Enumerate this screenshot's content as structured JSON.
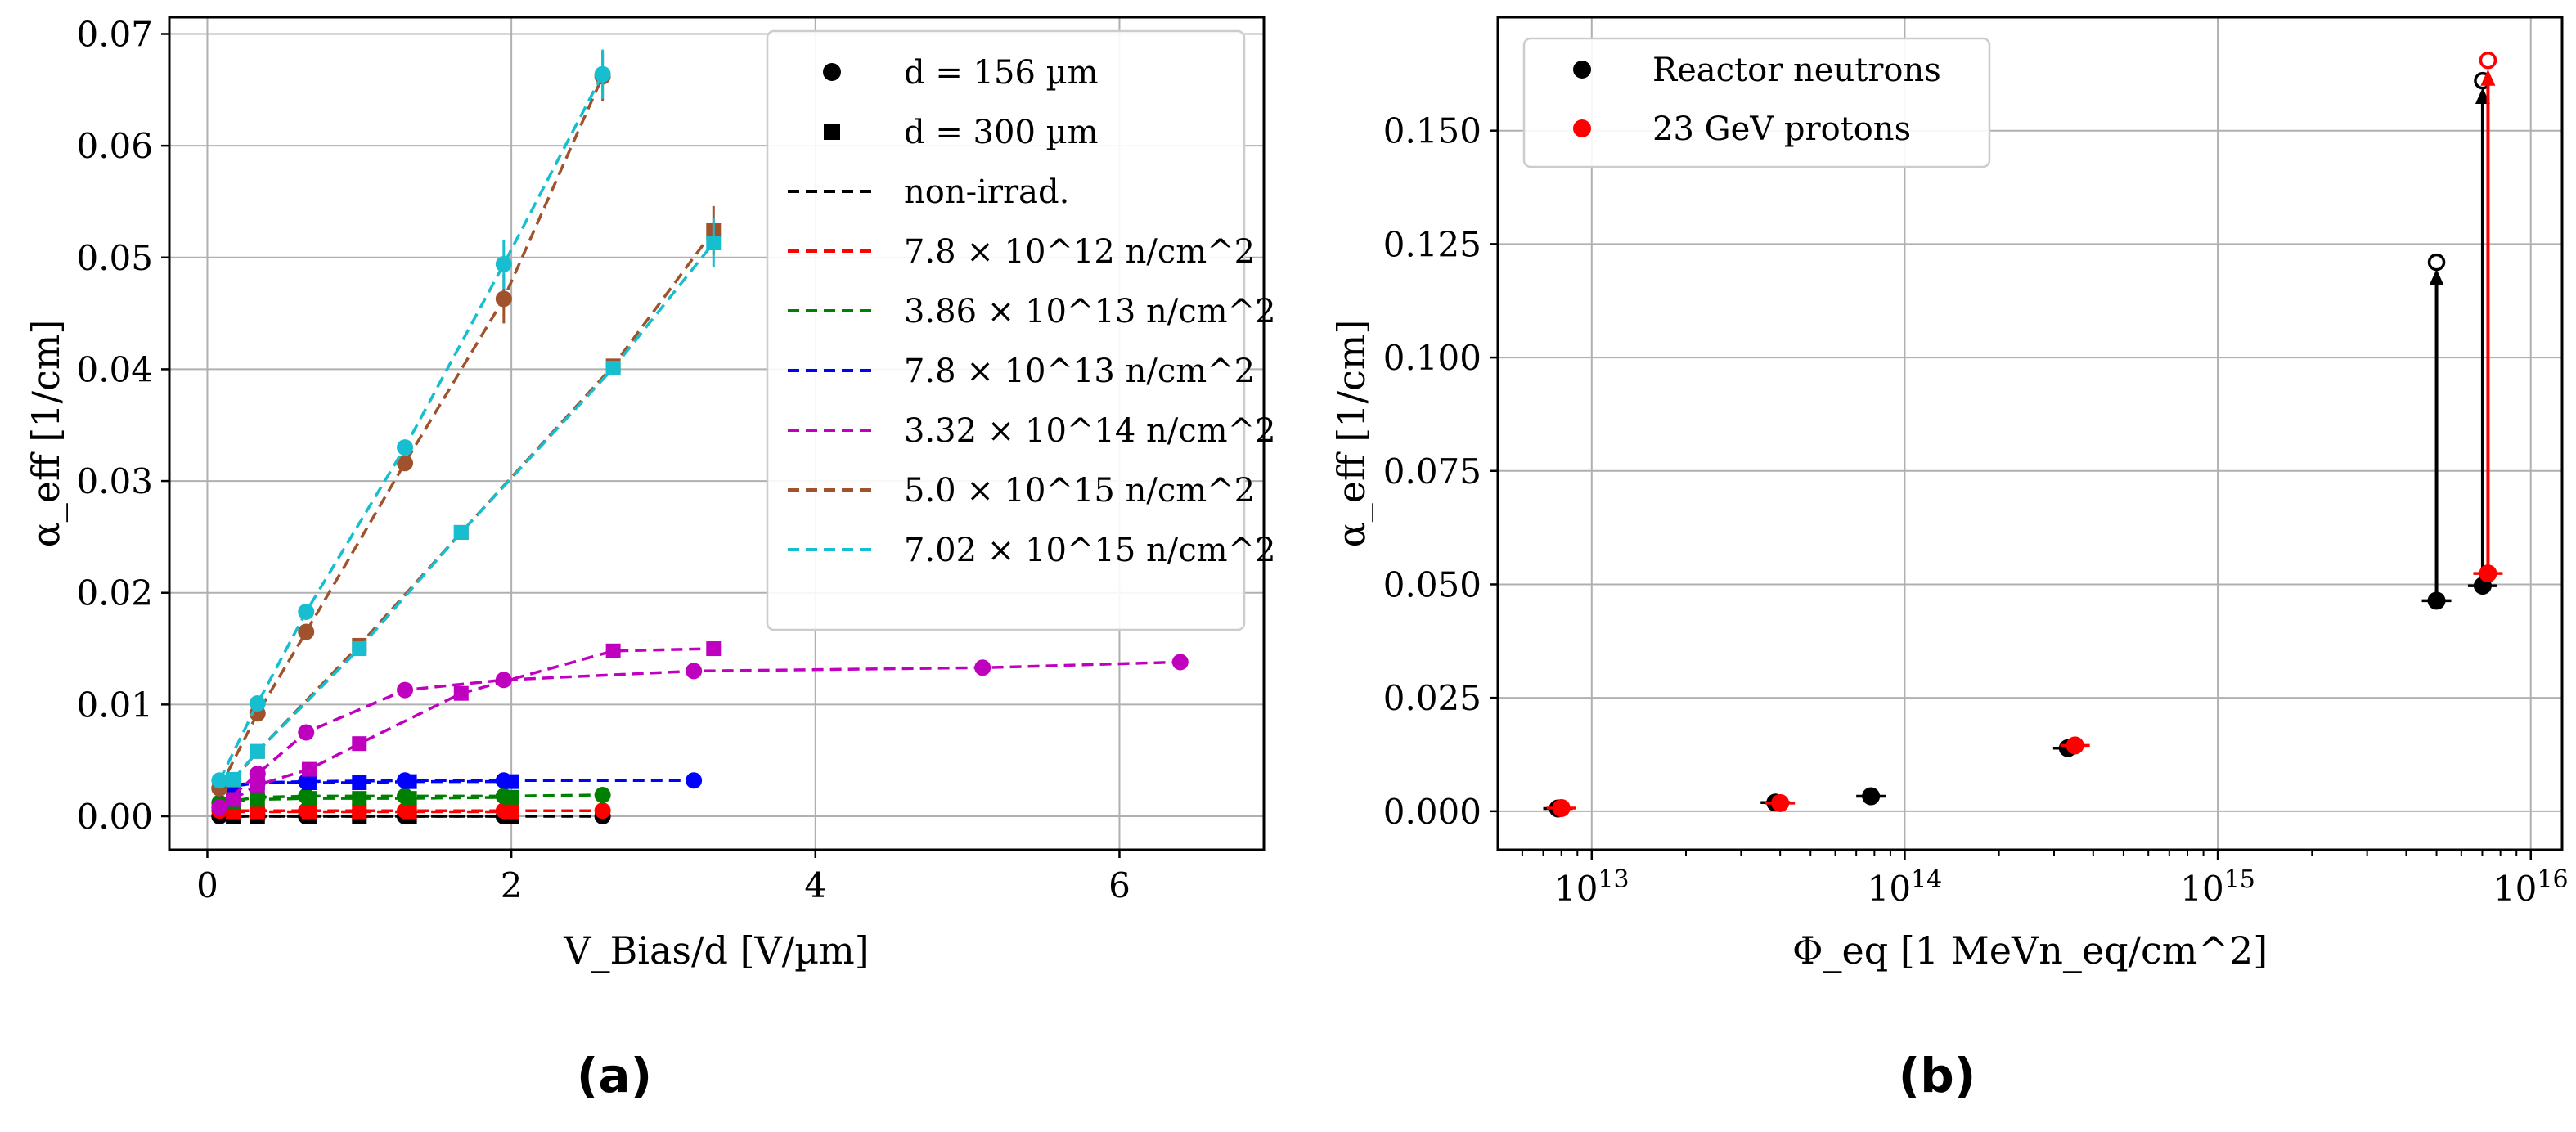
{
  "chart_data": [
    {
      "type": "line",
      "caption": "(a)",
      "xlabel": "V_Bias/d [V/µm]",
      "ylabel": "α_eff [1/cm]",
      "xlim": [
        -0.25,
        6.95
      ],
      "ylim": [
        -0.003,
        0.0715
      ],
      "xticks": [
        0,
        2,
        4,
        6
      ],
      "xtick_labels": [
        "0",
        "2",
        "4",
        "6"
      ],
      "yticks": [
        0.0,
        0.01,
        0.02,
        0.03,
        0.04,
        0.05,
        0.06,
        0.07
      ],
      "ytick_labels": [
        "0.00",
        "0.01",
        "0.02",
        "0.03",
        "0.04",
        "0.05",
        "0.06",
        "0.07"
      ],
      "grid": true,
      "legend_position": "top-right",
      "marker_legend": [
        {
          "marker": "circle",
          "label": "d = 156 µm"
        },
        {
          "marker": "square",
          "label": "d = 300 µm"
        }
      ],
      "series": [
        {
          "name": "non-irrad.",
          "color": "#000000",
          "circle": [
            [
              0.08,
              0.0
            ],
            [
              0.33,
              0.0
            ],
            [
              0.65,
              0.0
            ],
            [
              1.3,
              0.0
            ],
            [
              1.95,
              0.0
            ],
            [
              2.6,
              0.0
            ]
          ],
          "square": [
            [
              0.17,
              0.0
            ],
            [
              0.33,
              0.0
            ],
            [
              0.67,
              0.0
            ],
            [
              1.0,
              0.0
            ],
            [
              1.33,
              0.0
            ],
            [
              2.0,
              0.0
            ]
          ]
        },
        {
          "name": "7.8 × 10^12 n/cm^2",
          "color": "#ff0000",
          "circle": [
            [
              0.08,
              0.0005
            ],
            [
              0.33,
              0.0005
            ],
            [
              0.65,
              0.0005
            ],
            [
              1.3,
              0.0005
            ],
            [
              1.95,
              0.0005
            ],
            [
              2.6,
              0.0005
            ]
          ],
          "square": [
            [
              0.17,
              0.0004
            ],
            [
              0.33,
              0.0004
            ],
            [
              0.67,
              0.0004
            ],
            [
              1.0,
              0.0004
            ],
            [
              1.33,
              0.0004
            ],
            [
              2.0,
              0.0004
            ]
          ]
        },
        {
          "name": "3.86 × 10^13 n/cm^2",
          "color": "#008000",
          "circle": [
            [
              0.08,
              0.0012
            ],
            [
              0.33,
              0.0017
            ],
            [
              0.65,
              0.0018
            ],
            [
              1.3,
              0.0018
            ],
            [
              1.95,
              0.0018
            ],
            [
              2.6,
              0.0019
            ]
          ],
          "square": [
            [
              0.17,
              0.0013
            ],
            [
              0.33,
              0.0015
            ],
            [
              0.67,
              0.0016
            ],
            [
              1.0,
              0.0016
            ],
            [
              1.33,
              0.0016
            ],
            [
              2.0,
              0.0017
            ]
          ]
        },
        {
          "name": "7.8 × 10^13 n/cm^2",
          "color": "#0000ff",
          "circle": [
            [
              0.08,
              0.0025
            ],
            [
              0.33,
              0.003
            ],
            [
              0.65,
              0.0031
            ],
            [
              1.3,
              0.0032
            ],
            [
              1.95,
              0.0032
            ],
            [
              3.2,
              0.0032
            ]
          ],
          "square": [
            [
              0.17,
              0.0028
            ],
            [
              0.33,
              0.003
            ],
            [
              0.67,
              0.003
            ],
            [
              1.0,
              0.003
            ],
            [
              1.33,
              0.0031
            ],
            [
              2.0,
              0.0031
            ]
          ]
        },
        {
          "name": "3.32 × 10^14 n/cm^2",
          "color": "#bf00bf",
          "circle": [
            [
              0.08,
              0.0008
            ],
            [
              0.33,
              0.0038
            ],
            [
              0.65,
              0.0075
            ],
            [
              1.3,
              0.0113
            ],
            [
              1.95,
              0.0122
            ],
            [
              3.2,
              0.013
            ],
            [
              5.1,
              0.0133
            ],
            [
              6.4,
              0.0138
            ]
          ],
          "square": [
            [
              0.17,
              0.0015
            ],
            [
              0.33,
              0.0028
            ],
            [
              0.67,
              0.0042
            ],
            [
              1.0,
              0.0065
            ],
            [
              1.67,
              0.011
            ],
            [
              2.67,
              0.0148
            ],
            [
              3.33,
              0.015
            ]
          ]
        },
        {
          "name": "5.0 × 10^15 n/cm^2",
          "color": "#a0522d",
          "circle": [
            [
              0.08,
              0.0025
            ],
            [
              0.33,
              0.0092
            ],
            [
              0.65,
              0.0165
            ],
            [
              1.3,
              0.0316
            ],
            [
              1.95,
              0.0463
            ],
            [
              2.6,
              0.0662
            ]
          ],
          "square": [
            [
              0.17,
              0.0032
            ],
            [
              0.33,
              0.0058
            ],
            [
              1.0,
              0.0153
            ],
            [
              1.67,
              0.0254
            ],
            [
              2.67,
              0.0403
            ],
            [
              3.33,
              0.0524
            ]
          ]
        },
        {
          "name": "7.02 × 10^15 n/cm^2",
          "color": "#17becf",
          "circle": [
            [
              0.08,
              0.0032
            ],
            [
              0.33,
              0.0101
            ],
            [
              0.65,
              0.0183
            ],
            [
              1.3,
              0.033
            ],
            [
              1.95,
              0.0494
            ],
            [
              2.6,
              0.0664
            ]
          ],
          "square": [
            [
              0.17,
              0.0033
            ],
            [
              0.33,
              0.0058
            ],
            [
              1.0,
              0.015
            ],
            [
              1.67,
              0.0254
            ],
            [
              2.67,
              0.0401
            ],
            [
              3.33,
              0.0513
            ]
          ]
        }
      ]
    },
    {
      "type": "scatter",
      "caption": "(b)",
      "xlabel": "Φ_eq [1 MeVn_eq/cm^2]",
      "ylabel": "α_eff [1/cm]",
      "xscale": "log",
      "xlim_log10": [
        12.7,
        16.1
      ],
      "ylim": [
        -0.0085,
        0.175
      ],
      "xticks_log10": [
        13,
        14,
        15,
        16
      ],
      "xtick_labels": [
        "10^13",
        "10^14",
        "10^15",
        "10^16"
      ],
      "yticks": [
        0.0,
        0.025,
        0.05,
        0.075,
        0.1,
        0.125,
        0.15
      ],
      "ytick_labels": [
        "0.000",
        "0.025",
        "0.050",
        "0.075",
        "0.100",
        "0.125",
        "0.150"
      ],
      "grid": true,
      "legend_position": "top-left",
      "series": [
        {
          "name": "Reactor neutrons",
          "color": "#000000",
          "points": [
            [
              7800000000000.0,
              0.0006
            ],
            [
              38600000000000.0,
              0.0019
            ],
            [
              78000000000000.0,
              0.0033
            ],
            [
              332000000000000.0,
              0.0139
            ],
            [
              5000000000000000.0,
              0.0464
            ],
            [
              7020000000000000.0,
              0.0497
            ]
          ],
          "open_points": [
            [
              5000000000000000.0,
              0.121
            ],
            [
              7020000000000000.0,
              0.161
            ]
          ],
          "arrows": [
            [
              5000000000000000.0,
              0.0464,
              0.1195
            ],
            [
              7020000000000000.0,
              0.0497,
              0.1595
            ]
          ]
        },
        {
          "name": "23 GeV protons",
          "color": "#ff0000",
          "points": [
            [
              8000000000000.0,
              0.0007
            ],
            [
              40000000000000.0,
              0.0018
            ],
            [
              350000000000000.0,
              0.0145
            ],
            [
              7300000000000000.0,
              0.0524
            ]
          ],
          "open_points": [
            [
              7300000000000000.0,
              0.1655
            ]
          ],
          "arrows": [
            [
              7300000000000000.0,
              0.0524,
              0.1635
            ]
          ]
        }
      ]
    }
  ]
}
